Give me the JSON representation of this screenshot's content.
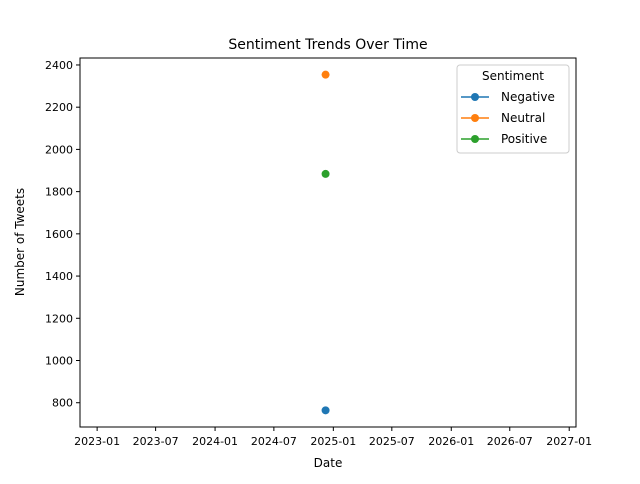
{
  "chart_data": {
    "type": "line",
    "title": "Sentiment Trends Over Time",
    "xlabel": "Date",
    "ylabel": "Number of Tweets",
    "x_tick_labels": [
      "2023-01",
      "2023-07",
      "2024-01",
      "2024-07",
      "2025-01",
      "2025-07",
      "2026-01",
      "2026-07",
      "2027-01"
    ],
    "x_ticks": [
      "2023-01-01",
      "2023-07-01",
      "2024-01-01",
      "2024-07-01",
      "2025-01-01",
      "2025-07-01",
      "2026-01-01",
      "2026-07-01",
      "2027-01-01"
    ],
    "xlim": [
      "2022-11-09",
      "2027-01-22"
    ],
    "y_ticks": [
      800,
      1000,
      1200,
      1400,
      1600,
      1800,
      2000,
      2200,
      2400
    ],
    "ylim": [
      685,
      2433
    ],
    "grid": false,
    "legend": {
      "title": "Sentiment",
      "placement": "top-right"
    },
    "series": [
      {
        "name": "Negative",
        "color": "#1f77b4",
        "points": [
          {
            "x": "2024-12-08",
            "y": 764
          }
        ]
      },
      {
        "name": "Neutral",
        "color": "#ff7f0e",
        "points": [
          {
            "x": "2024-12-08",
            "y": 2354
          }
        ]
      },
      {
        "name": "Positive",
        "color": "#2ca02c",
        "points": [
          {
            "x": "2024-12-08",
            "y": 1884
          }
        ]
      }
    ]
  }
}
